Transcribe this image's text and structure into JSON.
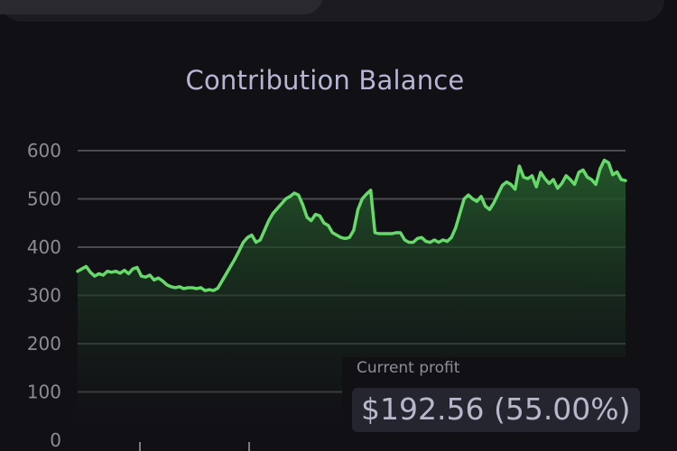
{
  "header": {
    "title": "Contribution Balance"
  },
  "tooltip": {
    "label": "Current profit",
    "value": "$192.56 (55.00%)"
  },
  "colors": {
    "background": "#111015",
    "line": "#66d96a",
    "grid": "#4a4a50",
    "title": "#b6b6d4",
    "tick": "#8c8c92"
  },
  "chart_data": {
    "type": "area",
    "title": "Contribution Balance",
    "ylim": [
      0,
      600
    ],
    "yticks": [
      0,
      100,
      200,
      300,
      400,
      500,
      600
    ],
    "grid": true,
    "series": [
      {
        "values": [
          350,
          355,
          360,
          348,
          340,
          345,
          342,
          350,
          348,
          350,
          346,
          352,
          345,
          355,
          358,
          340,
          338,
          342,
          332,
          336,
          330,
          322,
          318,
          316,
          318,
          314,
          316,
          316,
          314,
          316,
          310,
          312,
          310,
          315,
          330,
          345,
          360,
          375,
          392,
          410,
          420,
          425,
          410,
          415,
          435,
          455,
          470,
          480,
          490,
          500,
          505,
          512,
          508,
          488,
          462,
          455,
          468,
          465,
          450,
          445,
          430,
          425,
          420,
          418,
          420,
          435,
          478,
          500,
          510,
          518,
          430,
          428,
          428,
          428,
          428,
          430,
          430,
          415,
          410,
          410,
          418,
          420,
          412,
          410,
          415,
          410,
          415,
          412,
          420,
          440,
          470,
          500,
          508,
          500,
          495,
          505,
          485,
          478,
          492,
          510,
          528,
          535,
          530,
          520,
          568,
          545,
          542,
          548,
          525,
          555,
          542,
          532,
          540,
          522,
          532,
          548,
          540,
          530,
          555,
          560,
          545,
          540,
          530,
          562,
          580,
          575,
          550,
          556,
          540,
          538
        ]
      }
    ]
  }
}
